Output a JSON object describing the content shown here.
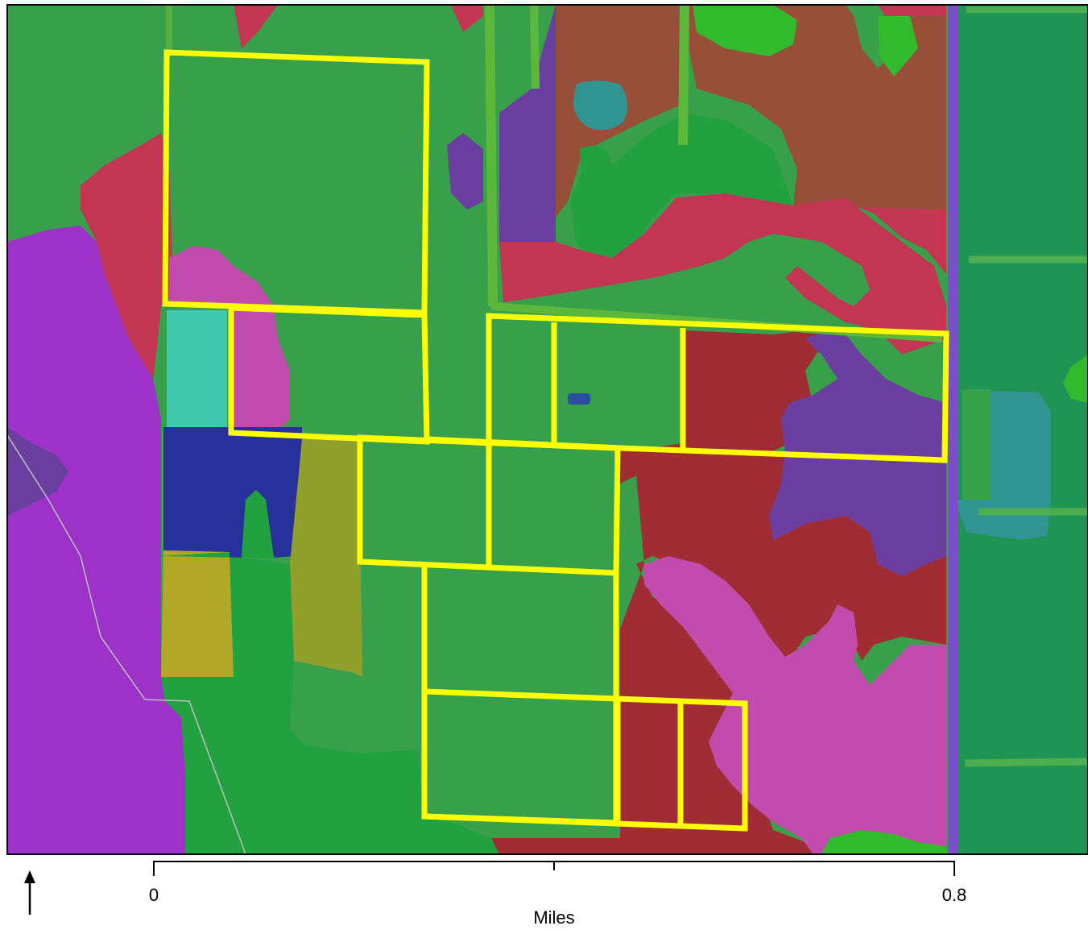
{
  "scale_bar": {
    "label_start": "0",
    "label_end": "0.8",
    "unit": "Miles"
  },
  "north_arrow": {
    "icon": "north-arrow-icon"
  },
  "colors": {
    "parcel_outline": "#ffff00",
    "forest_green": "#38a04a",
    "dark_green": "#21a140",
    "crimson": "#c23553",
    "maroon": "#a02c34",
    "purple": "#9c32c8",
    "violet": "#6a3fa0",
    "magenta": "#c14cad",
    "brown": "#974f39",
    "teal": "#329490",
    "aqua": "#43c8b0",
    "navy": "#28309c",
    "olive": "#b2a828",
    "lime": "#31bb2c"
  }
}
